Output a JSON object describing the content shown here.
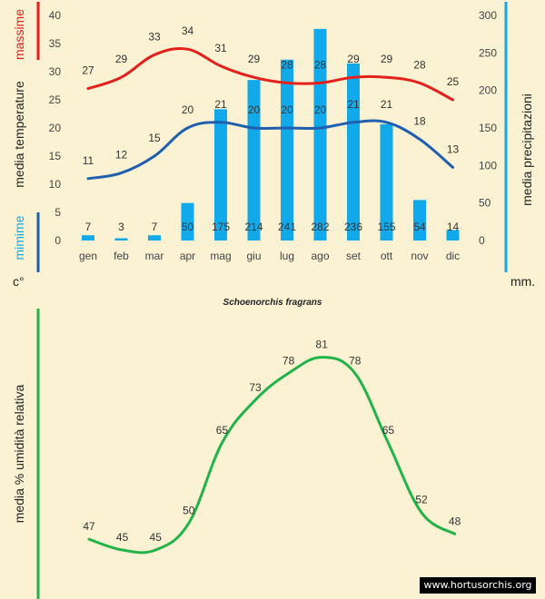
{
  "chart_data": [
    {
      "type": "bar+line",
      "title": "Schoenorchis fragrans",
      "categories": [
        "gen",
        "feb",
        "mar",
        "apr",
        "mag",
        "giu",
        "lug",
        "ago",
        "set",
        "ott",
        "nov",
        "dic"
      ],
      "left_axis": {
        "label": "media  temperature",
        "unit": "c°",
        "ylim": [
          0,
          40
        ],
        "ticks": [
          0,
          5,
          10,
          15,
          20,
          25,
          30,
          35,
          40
        ]
      },
      "right_axis": {
        "label": "media  precipitazioni",
        "unit": "mm.",
        "ylim": [
          0,
          300
        ],
        "ticks": [
          0,
          50,
          100,
          150,
          200,
          250,
          300
        ]
      },
      "side_labels": {
        "max": "massime",
        "min": "mimime"
      },
      "series": [
        {
          "name": "massime",
          "kind": "line",
          "axis": "left",
          "color": "#e3201b",
          "values": [
            27,
            29,
            33,
            34,
            31,
            29,
            28,
            28,
            29,
            29,
            28,
            25
          ]
        },
        {
          "name": "mimime",
          "kind": "line",
          "axis": "left",
          "color": "#1f5fae",
          "values": [
            11,
            12,
            15,
            20,
            21,
            20,
            20,
            20,
            21,
            21,
            18,
            13
          ]
        },
        {
          "name": "precipitazioni",
          "kind": "bar",
          "axis": "right",
          "color": "#12a9ea",
          "values": [
            7,
            3,
            7,
            50,
            175,
            214,
            241,
            282,
            236,
            155,
            54,
            14
          ]
        }
      ]
    },
    {
      "type": "line",
      "ylabel": "media %  umidità relativa",
      "categories": [
        "gen",
        "feb",
        "mar",
        "apr",
        "mag",
        "giu",
        "lug",
        "ago",
        "set",
        "ott",
        "nov",
        "dic"
      ],
      "series": [
        {
          "name": "umidità relativa",
          "color": "#22b34a",
          "values": [
            47,
            45,
            45,
            50,
            65,
            73,
            78,
            81,
            78,
            65,
            52,
            48
          ]
        }
      ]
    }
  ],
  "credit": "www.hortusorchis.org"
}
